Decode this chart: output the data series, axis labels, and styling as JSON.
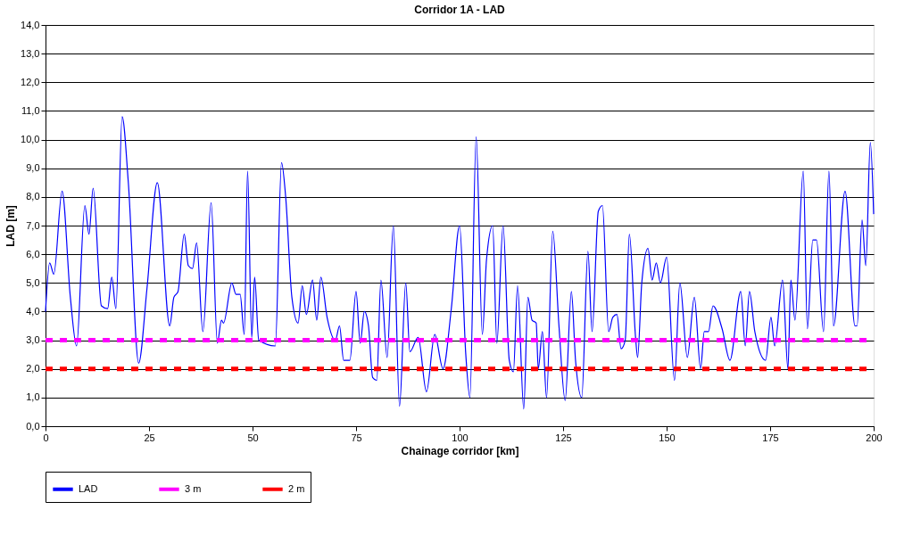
{
  "chart_data": {
    "type": "line",
    "title": "Corridor 1A - LAD",
    "xlabel": "Chainage corridor [km]",
    "ylabel": "LAD [m]",
    "xlim": [
      0,
      200
    ],
    "xticks": [
      0,
      25,
      50,
      75,
      100,
      125,
      150,
      175,
      200
    ],
    "ylim": [
      0,
      14
    ],
    "yticks": [
      {
        "value": 0,
        "label": "0,0"
      },
      {
        "value": 1,
        "label": "1,0"
      },
      {
        "value": 2,
        "label": "2,0"
      },
      {
        "value": 3,
        "label": "3,0"
      },
      {
        "value": 4,
        "label": "4,0"
      },
      {
        "value": 5,
        "label": "5,0"
      },
      {
        "value": 6,
        "label": "6,0"
      },
      {
        "value": 7,
        "label": "7,0"
      },
      {
        "value": 8,
        "label": "8,0"
      },
      {
        "value": 9,
        "label": "9,0"
      },
      {
        "value": 10,
        "label": "10,0"
      },
      {
        "value": 11,
        "label": "11,0"
      },
      {
        "value": 12,
        "label": "12,0"
      },
      {
        "value": 13,
        "label": "13,0"
      },
      {
        "value": 14,
        "label": "14,0"
      }
    ],
    "grid": "y",
    "legend": "bottom",
    "series": [
      {
        "name": "LAD",
        "color": "#0000ff",
        "line_style": "solid",
        "x": [
          0,
          1,
          2,
          4,
          6,
          7.5,
          9.5,
          10.5,
          11.5,
          13.5,
          15,
          16,
          17,
          18.5,
          20,
          22.5,
          24.5,
          27,
          30,
          31,
          32,
          33.5,
          34.5,
          35.5,
          36.5,
          38,
          40,
          41.5,
          42.5,
          43,
          45,
          46,
          47,
          48,
          48.8,
          49.8,
          50.5,
          51.5,
          55.5,
          57,
          58,
          59.5,
          61,
          62,
          63,
          64.5,
          65.5,
          66.5,
          68,
          70,
          71,
          72,
          73.5,
          75,
          76,
          77,
          78,
          79,
          80,
          81,
          82.5,
          84,
          85.5,
          87,
          88,
          90,
          92,
          94,
          96,
          98,
          100,
          101.5,
          102.5,
          104,
          105.5,
          106.5,
          108,
          109,
          110.5,
          112,
          113,
          114,
          115.5,
          116.5,
          117.5,
          118.5,
          119,
          120,
          121,
          122.5,
          124,
          125.5,
          127,
          128,
          129.5,
          131,
          132,
          133.5,
          134.5,
          136,
          137,
          138,
          139,
          140,
          141,
          142.5,
          143,
          144,
          145.5,
          146.5,
          147.5,
          148.5,
          150,
          151.9,
          153.2,
          155,
          156.7,
          158.2,
          159.1,
          160.1,
          161.2,
          163.4,
          165.3,
          167.9,
          169,
          170,
          171.3,
          173.9,
          175.2,
          176.1,
          178,
          179.3,
          180,
          181,
          183,
          184,
          185.3,
          186.2,
          187.9,
          189.2,
          190.3,
          193.1,
          195.5,
          196,
          197.2,
          198.1,
          199.2,
          200
        ],
        "values": [
          4.0,
          5.7,
          5.3,
          8.2,
          4.5,
          2.8,
          7.7,
          6.7,
          8.3,
          4.2,
          4.1,
          5.2,
          4.1,
          10.8,
          8.5,
          2.2,
          4.8,
          8.5,
          3.5,
          4.5,
          4.7,
          6.7,
          5.6,
          5.5,
          6.4,
          3.3,
          7.8,
          2.9,
          3.7,
          3.6,
          5.0,
          4.6,
          4.6,
          3.2,
          8.9,
          3.1,
          5.2,
          3.0,
          2.8,
          9.2,
          8.0,
          4.5,
          3.6,
          4.9,
          3.9,
          5.1,
          3.7,
          5.2,
          3.8,
          3.0,
          3.5,
          2.3,
          2.3,
          4.7,
          2.9,
          4.0,
          3.5,
          1.7,
          1.6,
          5.1,
          2.4,
          7.0,
          0.7,
          5.0,
          2.6,
          3.1,
          1.2,
          3.2,
          2.0,
          4.1,
          7.0,
          2.5,
          1.0,
          10.1,
          3.2,
          5.8,
          7.0,
          2.9,
          7.0,
          2.3,
          1.9,
          4.9,
          0.6,
          4.5,
          3.7,
          3.6,
          2.0,
          3.3,
          1.0,
          6.8,
          3.5,
          0.9,
          4.7,
          2.3,
          1.0,
          6.1,
          3.3,
          7.5,
          7.7,
          3.3,
          3.8,
          3.9,
          2.7,
          3.0,
          6.7,
          3.1,
          2.4,
          5.0,
          6.2,
          5.1,
          5.7,
          5.0,
          5.9,
          1.6,
          5.0,
          2.4,
          4.5,
          2.0,
          3.3,
          3.3,
          4.2,
          3.4,
          2.3,
          4.7,
          2.8,
          4.7,
          3.3,
          2.3,
          3.8,
          2.8,
          5.1,
          2.0,
          5.1,
          3.7,
          8.9,
          3.4,
          6.5,
          6.5,
          3.3,
          8.9,
          3.5,
          8.2,
          3.5,
          3.5,
          7.2,
          5.6,
          9.9,
          7.4
        ]
      },
      {
        "name": "3 m",
        "color": "#ff00ff",
        "line_style": "dashed",
        "x": [
          0,
          200
        ],
        "values": [
          3,
          3
        ]
      },
      {
        "name": "2 m",
        "color": "#ff0000",
        "line_style": "dashed",
        "x": [
          0,
          200
        ],
        "values": [
          2,
          2
        ]
      }
    ]
  }
}
